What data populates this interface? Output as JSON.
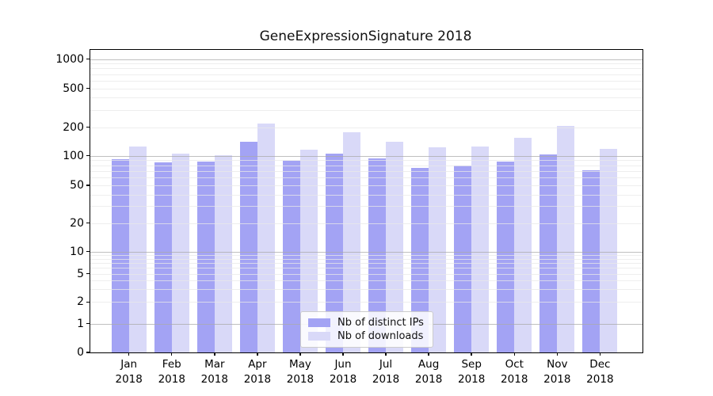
{
  "title": "GeneExpressionSignature 2018",
  "colors": {
    "ips": "#a3a3f4",
    "downloads": "#d9d9f8",
    "grid_major": "#a9a9a9",
    "grid_minor": "#e8e8e8",
    "spine": "#000000",
    "legend_border": "#cccccc"
  },
  "legend": {
    "items": [
      {
        "key": "ips",
        "label": "Nb of distinct IPs"
      },
      {
        "key": "downloads",
        "label": "Nb of downloads"
      }
    ]
  },
  "chart_data": {
    "type": "bar",
    "title": "GeneExpressionSignature 2018",
    "categories": [
      "Jan 2018",
      "Feb 2018",
      "Mar 2018",
      "Apr 2018",
      "May 2018",
      "Jun 2018",
      "Jul 2018",
      "Aug 2018",
      "Sep 2018",
      "Oct 2018",
      "Nov 2018",
      "Dec 2018"
    ],
    "series": [
      {
        "name": "Nb of distinct IPs",
        "values": [
          93,
          85,
          88,
          140,
          89,
          106,
          94,
          75,
          79,
          88,
          104,
          71
        ]
      },
      {
        "name": "Nb of downloads",
        "values": [
          126,
          105,
          101,
          216,
          116,
          178,
          140,
          122,
          125,
          153,
          207,
          118
        ]
      }
    ],
    "xlabel": "",
    "ylabel": "",
    "y_scale": "symlog",
    "y_ticks": [
      0,
      1,
      2,
      5,
      10,
      20,
      50,
      100,
      200,
      500,
      1000
    ],
    "ylim": [
      0,
      1250
    ],
    "grid": "on",
    "legend_position": "lower-center"
  }
}
